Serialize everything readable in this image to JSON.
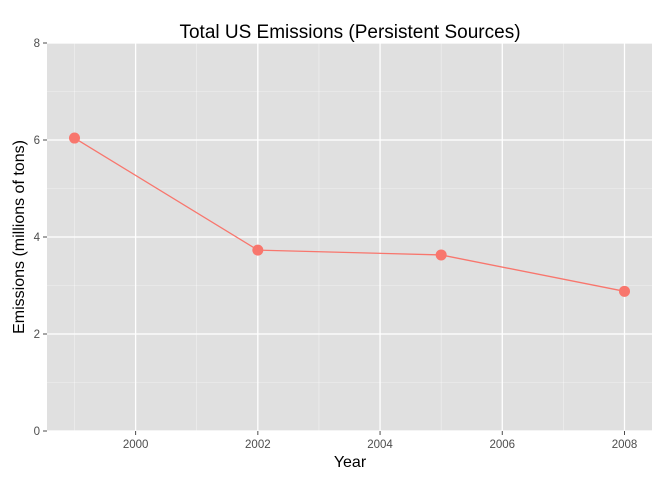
{
  "chart_data": {
    "type": "line",
    "title": "Total US Emissions (Persistent Sources)",
    "xlabel": "Year",
    "ylabel": "Emissions (millions of tons)",
    "x": [
      1999,
      2002,
      2005,
      2008
    ],
    "series": [
      {
        "values": [
          6.04,
          3.73,
          3.63,
          2.88
        ]
      }
    ],
    "xlim": [
      1998.55,
      2008.45
    ],
    "ylim": [
      0,
      8
    ],
    "x_ticks": [
      2000,
      2002,
      2004,
      2006,
      2008
    ],
    "x_tick_labels": [
      "2000",
      "2002",
      "2004",
      "2006",
      "2008"
    ],
    "y_ticks": [
      0,
      2,
      4,
      6,
      8
    ],
    "y_tick_labels": [
      "0",
      "2",
      "4",
      "6",
      "8"
    ],
    "grid": true,
    "colors": {
      "panel_background": "#e0e0e0",
      "gridline": "#ffffff",
      "series": "#f8766d"
    }
  }
}
